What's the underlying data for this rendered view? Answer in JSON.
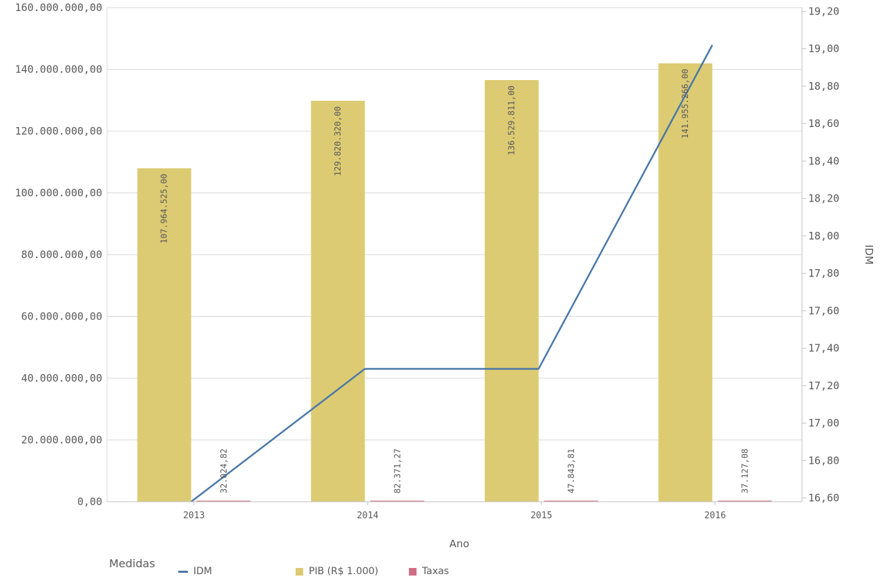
{
  "chart_data": {
    "type": "bar",
    "title": "",
    "xlabel": "Ano",
    "ylabel_left": "",
    "ylabel_right": "IDM",
    "categories": [
      "2013",
      "2014",
      "2015",
      "2016"
    ],
    "series": [
      {
        "name": "PIB (R$ 1.000)",
        "type": "bar",
        "axis": "left",
        "color": "#dccb73",
        "values": [
          107964525,
          129820320,
          136529811,
          141955266
        ],
        "labels": [
          "107.964.525,00",
          "129.820.320,00",
          "136.529.811,00",
          "141.955.266,00"
        ]
      },
      {
        "name": "Taxas",
        "type": "bar",
        "axis": "left",
        "color": "#d16c82",
        "values": [
          32024.82,
          82371.27,
          47843.81,
          37127.08
        ],
        "labels": [
          "32.024,82",
          "82.371,27",
          "47.843,81",
          "37.127,08"
        ]
      },
      {
        "name": "IDM",
        "type": "line",
        "axis": "right",
        "color": "#4a78a8",
        "values": [
          16.58,
          17.29,
          17.29,
          19.02
        ]
      }
    ],
    "ylim_left": [
      0,
      160000000
    ],
    "yticks_left": [
      {
        "v": 0,
        "label": "0,00"
      },
      {
        "v": 20000000,
        "label": "20.000.000,00"
      },
      {
        "v": 40000000,
        "label": "40.000.000,00"
      },
      {
        "v": 60000000,
        "label": "60.000.000,00"
      },
      {
        "v": 80000000,
        "label": "80.000.000,00"
      },
      {
        "v": 100000000,
        "label": "100.000.000,00"
      },
      {
        "v": 120000000,
        "label": "120.000.000,00"
      },
      {
        "v": 140000000,
        "label": "140.000.000,00"
      },
      {
        "v": 160000000,
        "label": "160.000.000,00"
      }
    ],
    "ylim_right": [
      16.58,
      19.22
    ],
    "yticks_right": [
      "16,60",
      "16,80",
      "17,00",
      "17,20",
      "17,40",
      "17,60",
      "17,80",
      "18,00",
      "18,20",
      "18,40",
      "18,60",
      "18,80",
      "19,00",
      "19,20"
    ],
    "grid": true,
    "legend_position": "bottom-left"
  },
  "legend": {
    "title": "Medidas",
    "items": [
      {
        "label": "IDM",
        "color": "#4a78a8",
        "kind": "line"
      },
      {
        "label": "PIB (R$ 1.000)",
        "color": "#dccb73",
        "kind": "box"
      },
      {
        "label": "Taxas",
        "color": "#d16c82",
        "kind": "box"
      }
    ]
  }
}
